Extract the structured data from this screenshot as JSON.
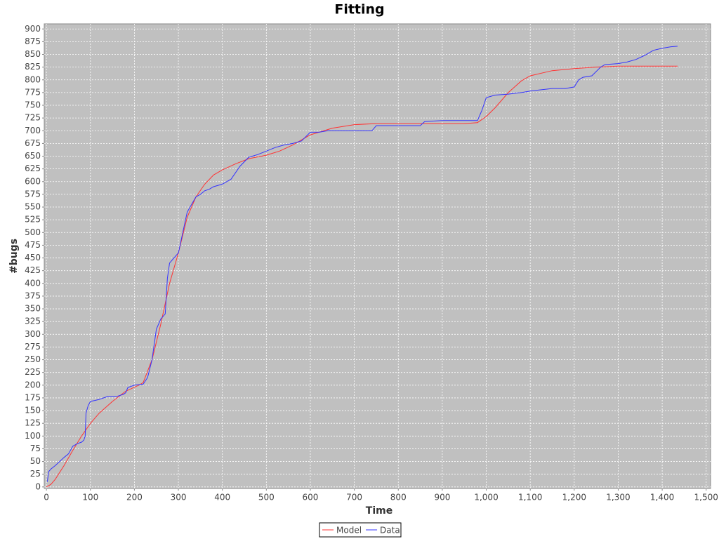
{
  "chart_data": {
    "type": "line",
    "title": "Fitting",
    "x_label": "Time",
    "y_label": "#bugs",
    "xlim": [
      -5,
      1510
    ],
    "ylim": [
      -3,
      910
    ],
    "xticks": [
      0,
      100,
      200,
      300,
      400,
      500,
      600,
      700,
      800,
      900,
      {
        "value": 1000,
        "label": "1,000"
      },
      {
        "value": 1100,
        "label": "1,100"
      },
      {
        "value": 1200,
        "label": "1,200"
      },
      {
        "value": 1300,
        "label": "1,300"
      },
      {
        "value": 1400,
        "label": "1,400"
      },
      {
        "value": 1500,
        "label": "1,500"
      }
    ],
    "yticks": [
      0,
      25,
      50,
      75,
      100,
      125,
      150,
      175,
      200,
      225,
      250,
      275,
      300,
      325,
      350,
      375,
      400,
      425,
      450,
      475,
      500,
      525,
      550,
      575,
      600,
      625,
      650,
      675,
      700,
      725,
      750,
      775,
      800,
      825,
      850,
      875,
      900
    ],
    "grid": true,
    "legend": "bottom",
    "series": [
      {
        "name": "Model",
        "color": "#ff3333",
        "x": [
          0,
          10,
          20,
          40,
          60,
          80,
          100,
          120,
          150,
          180,
          210,
          220,
          240,
          260,
          280,
          300,
          320,
          340,
          360,
          380,
          400,
          430,
          460,
          500,
          530,
          560,
          600,
          650,
          700,
          750,
          800,
          850,
          900,
          950,
          980,
          1000,
          1020,
          1050,
          1080,
          1100,
          1150,
          1200,
          1250,
          1300,
          1350,
          1400,
          1435
        ],
        "values": [
          0,
          5,
          15,
          42,
          72,
          100,
          125,
          145,
          168,
          188,
          200,
          205,
          250,
          320,
          400,
          460,
          530,
          570,
          595,
          613,
          623,
          635,
          645,
          652,
          660,
          672,
          692,
          705,
          712,
          714,
          714,
          714,
          714,
          714,
          716,
          728,
          745,
          775,
          798,
          808,
          818,
          822,
          825,
          827,
          827,
          827,
          827
        ]
      },
      {
        "name": "Data",
        "color": "#3333ff",
        "x": [
          2,
          5,
          10,
          20,
          30,
          40,
          50,
          60,
          70,
          80,
          85,
          88,
          90,
          95,
          100,
          110,
          120,
          140,
          160,
          175,
          180,
          185,
          190,
          200,
          220,
          230,
          240,
          250,
          260,
          270,
          275,
          280,
          290,
          300,
          310,
          320,
          330,
          340,
          350,
          360,
          370,
          380,
          400,
          420,
          440,
          460,
          480,
          500,
          520,
          540,
          560,
          580,
          600,
          620,
          640,
          660,
          680,
          700,
          720,
          740,
          750,
          760,
          800,
          850,
          860,
          900,
          950,
          980,
          990,
          1000,
          1020,
          1050,
          1080,
          1100,
          1150,
          1180,
          1200,
          1210,
          1220,
          1240,
          1260,
          1270,
          1300,
          1320,
          1340,
          1360,
          1380,
          1400,
          1420,
          1435
        ],
        "values": [
          10,
          30,
          35,
          42,
          50,
          58,
          65,
          80,
          85,
          88,
          92,
          100,
          145,
          160,
          168,
          170,
          172,
          178,
          178,
          182,
          185,
          195,
          197,
          200,
          202,
          215,
          250,
          310,
          330,
          340,
          410,
          440,
          450,
          460,
          500,
          540,
          555,
          570,
          575,
          582,
          585,
          590,
          595,
          605,
          630,
          648,
          653,
          660,
          667,
          672,
          675,
          680,
          697,
          697,
          700,
          700,
          700,
          700,
          700,
          700,
          710,
          710,
          710,
          710,
          718,
          720,
          720,
          720,
          740,
          765,
          770,
          772,
          775,
          778,
          783,
          783,
          786,
          800,
          805,
          808,
          825,
          830,
          832,
          835,
          840,
          848,
          858,
          862,
          865,
          866
        ]
      }
    ]
  }
}
